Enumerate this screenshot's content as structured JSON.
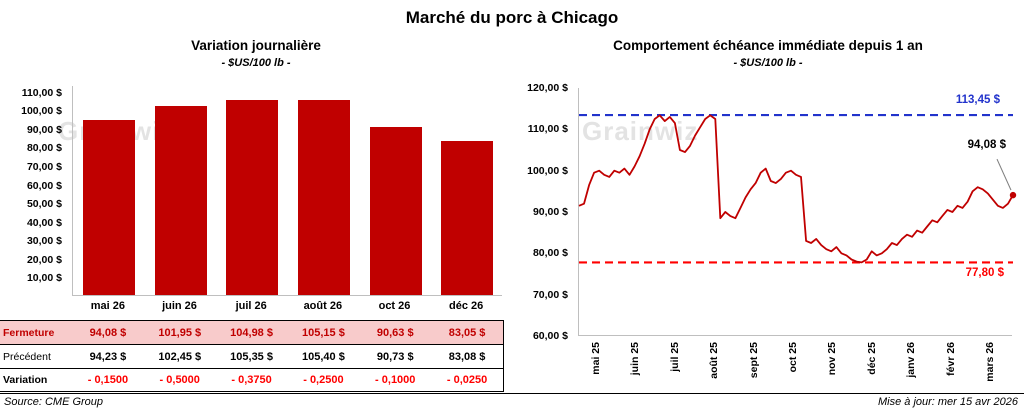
{
  "page": {
    "title": "Marché du porc à Chicago",
    "watermark": "Grainwiz",
    "footer": {
      "source": "Source: CME Group",
      "updated": "Mise à jour: mer 15 avr 2026"
    }
  },
  "colors": {
    "bar_fill": "#C00000",
    "line_stroke": "#C00000",
    "resistance_color": "#2233CC",
    "support_color": "#FF0000",
    "annotation_color": "#000000",
    "connector_color": "#7F7F7F",
    "fermeture_bg": "#F8CBCB",
    "fermeture_text": "#C00000",
    "variation_text": "#FF0000",
    "axis_color": "#BFBFBF",
    "watermark_color": "#DADADA"
  },
  "chart_data": [
    {
      "type": "bar",
      "title": "Variation journalière",
      "subtitle": "- $US/100 lb -",
      "categories": [
        "mai 26",
        "juin 26",
        "juil 26",
        "août 26",
        "oct 26",
        "déc 26"
      ],
      "values": [
        94.08,
        101.95,
        104.98,
        105.15,
        90.63,
        83.05
      ],
      "ylim": [
        10,
        110
      ],
      "grid": false,
      "ytick_values": [
        110,
        100,
        90,
        80,
        70,
        60,
        50,
        40,
        30,
        20,
        10
      ],
      "ytick_labels": [
        "110,00 $",
        "100,00 $",
        "90,00 $",
        "80,00 $",
        "70,00 $",
        "60,00 $",
        "50,00 $",
        "40,00 $",
        "30,00 $",
        "20,00 $",
        "10,00 $"
      ],
      "table": {
        "rows": [
          {
            "key": "fermeture",
            "label": "Fermeture",
            "values": [
              "94,08  $",
              "101,95  $",
              "104,98  $",
              "105,15  $",
              "90,63  $",
              "83,05  $"
            ]
          },
          {
            "key": "precedent",
            "label": "Précédent",
            "values": [
              "94,23  $",
              "102,45  $",
              "105,35  $",
              "105,40  $",
              "90,73  $",
              "83,08  $"
            ]
          },
          {
            "key": "variation",
            "label": "Variation",
            "values": [
              "- 0,1500",
              "- 0,5000",
              "- 0,3750",
              "- 0,2500",
              "- 0,1000",
              "- 0,0250"
            ]
          }
        ]
      }
    },
    {
      "type": "line",
      "title": "Comportement échéance immédiate depuis 1 an",
      "subtitle": "- $US/100 lb -",
      "x_labels": [
        "mai 25",
        "juin 25",
        "juil 25",
        "août 25",
        "sept 25",
        "oct 25",
        "nov 25",
        "déc 25",
        "janv 26",
        "févr 26",
        "mars 26"
      ],
      "ylim": [
        60,
        120
      ],
      "grid": false,
      "ytick_values": [
        120,
        110,
        100,
        90,
        80,
        70,
        60
      ],
      "ytick_labels": [
        "120,00 $",
        "110,00 $",
        "100,00 $",
        "90,00 $",
        "80,00 $",
        "70,00 $",
        "60,00 $"
      ],
      "values": [
        91.5,
        92,
        96.5,
        99.5,
        100,
        99,
        98.5,
        100,
        99.5,
        100.5,
        99,
        101,
        103.5,
        106.5,
        110,
        112.5,
        113.4,
        112,
        113,
        111.5,
        105,
        104.5,
        106,
        108.5,
        110.5,
        112.5,
        113.4,
        112.5,
        88.5,
        90,
        89,
        88.5,
        91,
        93.5,
        95.5,
        97,
        99.5,
        100.5,
        97.5,
        97,
        98,
        99.5,
        100,
        99,
        98.5,
        83,
        82.5,
        83.5,
        82,
        81,
        80.5,
        81.5,
        80,
        79.5,
        78.5,
        78,
        77.8,
        78.5,
        80.5,
        79.5,
        80,
        81,
        82.5,
        82,
        83.5,
        84.5,
        84,
        85.5,
        85,
        86.5,
        88,
        87.5,
        89,
        90.5,
        90,
        91.5,
        91,
        92.5,
        95,
        96,
        95.5,
        94.5,
        93,
        91.5,
        91,
        92,
        94.08
      ],
      "resistance": {
        "value": 113.45,
        "label": "113,45 $"
      },
      "support": {
        "value": 77.8,
        "label": "77,80 $"
      },
      "last": {
        "value": 94.08,
        "label": "94,08 $"
      }
    }
  ]
}
